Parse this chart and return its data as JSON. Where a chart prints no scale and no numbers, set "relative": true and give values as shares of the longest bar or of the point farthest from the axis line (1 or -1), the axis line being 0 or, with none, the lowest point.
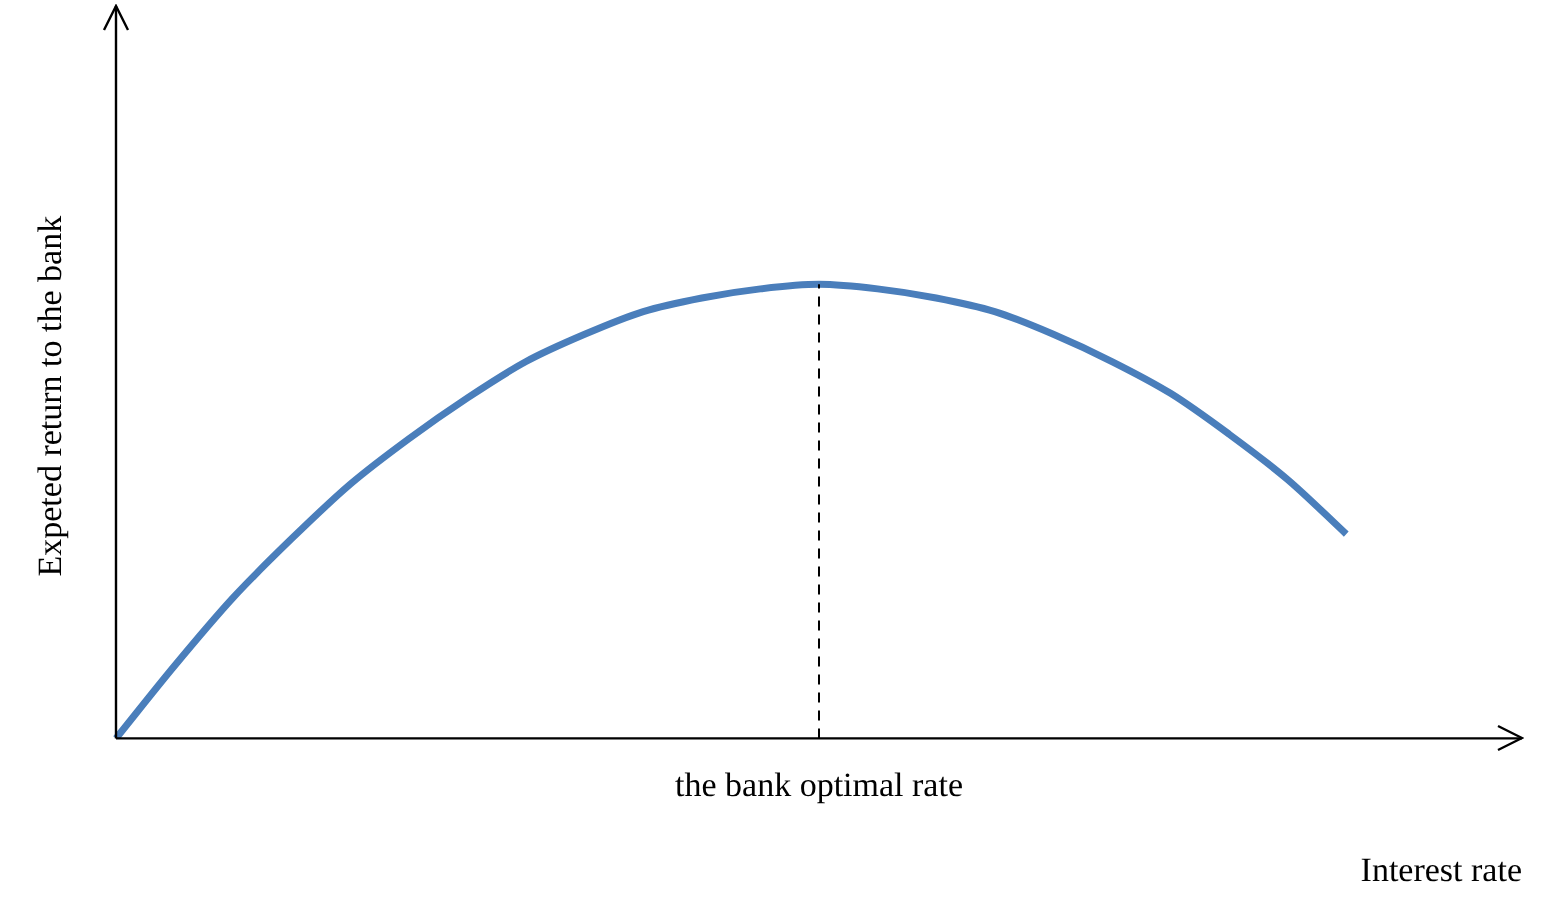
{
  "chart_data": {
    "type": "line",
    "relative": true,
    "ylabel": "Expeted return to the bank",
    "xlabel": "Interest rate",
    "categories": [
      null,
      null,
      null,
      null,
      null,
      null,
      null,
      null,
      null,
      null,
      null,
      null,
      null,
      null,
      null,
      null,
      null,
      null,
      null,
      null,
      null,
      null,
      null,
      null,
      null
    ],
    "series": [
      {
        "color": "#4a7ebb",
        "values": [
          0,
          0.16,
          0.31,
          0.44,
          0.56,
          0.66,
          0.75,
          0.83,
          0.89,
          0.94,
          0.97,
          0.99,
          1,
          0.99,
          0.97,
          0.94,
          0.89,
          0.83,
          0.76,
          0.67,
          0.57,
          0.45,
          null,
          null,
          null
        ]
      }
    ],
    "ref_lines": [
      {
        "axis": "x",
        "label": "the bank optimal rate",
        "line_style": "dashed",
        "color": "#000000"
      }
    ],
    "grid": false,
    "legend": false,
    "marker": "none",
    "line_style": "solid"
  }
}
